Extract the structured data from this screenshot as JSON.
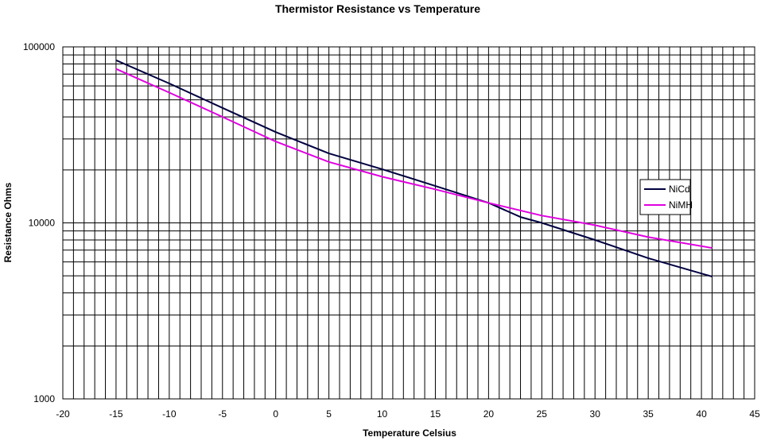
{
  "chart_data": {
    "type": "line",
    "title": "Thermistor Resistance vs Temperature",
    "xlabel": "Temperature Celsius",
    "ylabel": "Resistance Ohms",
    "xlim": [
      -20,
      45
    ],
    "x_ticks": [
      -20,
      -15,
      -10,
      -5,
      0,
      5,
      10,
      15,
      20,
      25,
      30,
      35,
      40,
      45
    ],
    "x_minor_step": 1,
    "y_scale": "log",
    "ylim": [
      1000,
      100000
    ],
    "y_tick_labels": [
      "1000",
      "10000",
      "100000"
    ],
    "grid": true,
    "legend_position": "right",
    "series": [
      {
        "name": "NiCd",
        "color": "#000040",
        "x": [
          -15,
          -10,
          -5,
          0,
          5,
          10,
          15,
          20,
          23,
          25,
          30,
          35,
          41
        ],
        "y": [
          84000,
          62000,
          45000,
          32800,
          24800,
          20200,
          16200,
          13000,
          10800,
          10000,
          8000,
          6300,
          4950
        ]
      },
      {
        "name": "NiMH",
        "color": "#e000e0",
        "x": [
          -15,
          -10,
          -5,
          0,
          5,
          10,
          15,
          20,
          25,
          30,
          35,
          41
        ],
        "y": [
          75000,
          55000,
          40000,
          29000,
          22200,
          18300,
          15500,
          13000,
          11000,
          9700,
          8300,
          7200
        ]
      }
    ]
  }
}
